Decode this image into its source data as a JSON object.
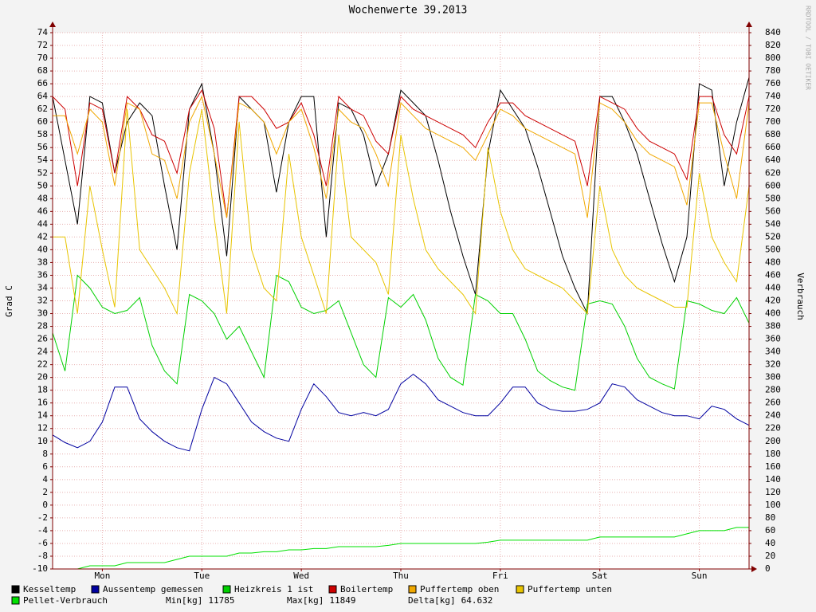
{
  "chart_data": {
    "type": "line",
    "title": "Wochenwerte 39.2013",
    "y_label": "Grad C",
    "y2_label": "Verbrauch",
    "watermark": "RRDTOOL / TOBI OETIKER",
    "x": [
      0,
      3,
      6,
      9,
      12,
      15,
      18,
      21,
      24,
      27,
      30,
      33,
      36,
      39,
      42,
      45,
      48,
      51,
      54,
      57,
      60,
      63,
      66,
      69,
      72,
      75,
      78,
      81,
      84,
      87,
      90,
      93,
      96,
      99,
      102,
      105,
      108,
      111,
      114,
      117,
      120,
      123,
      126,
      129,
      132,
      135,
      138,
      141,
      144,
      147,
      150,
      153,
      156,
      159,
      162,
      165,
      168
    ],
    "xlim": [
      0,
      168
    ],
    "xticks": [
      {
        "value": 12,
        "label": "Mon"
      },
      {
        "value": 36,
        "label": "Tue"
      },
      {
        "value": 60,
        "label": "Wed"
      },
      {
        "value": 84,
        "label": "Thu"
      },
      {
        "value": 108,
        "label": "Fri"
      },
      {
        "value": 132,
        "label": "Sat"
      },
      {
        "value": 156,
        "label": "Sun"
      }
    ],
    "ylim": [
      -10,
      74
    ],
    "yticks": [
      -10,
      -8,
      -6,
      -4,
      -2,
      0,
      2,
      4,
      6,
      8,
      10,
      12,
      14,
      16,
      18,
      20,
      22,
      24,
      26,
      28,
      30,
      32,
      34,
      36,
      38,
      40,
      42,
      44,
      46,
      48,
      50,
      52,
      54,
      56,
      58,
      60,
      62,
      64,
      66,
      68,
      70,
      72,
      74
    ],
    "y2lim": [
      0,
      840
    ],
    "y2ticks": [
      0,
      20,
      40,
      60,
      80,
      100,
      120,
      140,
      160,
      180,
      200,
      220,
      240,
      260,
      280,
      300,
      320,
      340,
      360,
      380,
      400,
      420,
      440,
      460,
      480,
      500,
      520,
      540,
      560,
      580,
      600,
      620,
      640,
      660,
      680,
      700,
      720,
      740,
      760,
      780,
      800,
      820,
      840
    ],
    "grid": true,
    "series": [
      {
        "name": "Kesseltemp",
        "color": "#000000",
        "values": [
          64,
          54,
          44,
          64,
          63,
          52,
          60,
          63,
          61,
          50,
          40,
          62,
          66,
          55,
          39,
          64,
          62,
          60,
          49,
          60,
          64,
          64,
          42,
          63,
          62,
          58,
          50,
          55,
          65,
          63,
          61,
          54,
          46,
          39,
          33,
          55,
          65,
          62,
          59,
          53,
          46,
          39,
          34,
          30,
          64,
          64,
          60,
          55,
          48,
          41,
          35,
          42,
          66,
          65,
          50,
          60,
          67
        ]
      },
      {
        "name": "Aussentemp gemessen",
        "color": "#0000a0",
        "values": [
          11,
          9.8,
          9,
          10,
          13,
          18.5,
          18.5,
          13.5,
          11.5,
          10,
          9,
          8.5,
          15,
          20,
          19,
          16,
          13,
          11.5,
          10.5,
          10,
          15,
          19,
          17,
          14.5,
          14,
          14.5,
          14,
          15,
          19,
          20.5,
          19,
          16.5,
          15.5,
          14.5,
          14,
          14,
          16,
          18.5,
          18.5,
          16,
          15,
          14.7,
          14.7,
          15,
          16,
          19,
          18.5,
          16.5,
          15.5,
          14.5,
          14,
          14,
          13.5,
          15.5,
          15,
          13.5,
          12.5
        ]
      },
      {
        "name": "Heizkreis 1 ist",
        "color": "#00d000",
        "values": [
          27,
          21,
          36,
          34,
          31,
          30,
          30.5,
          32.5,
          25,
          21,
          19,
          33,
          32,
          30,
          26,
          28,
          24,
          20,
          36,
          35,
          31,
          30,
          30.5,
          32,
          27,
          22,
          20,
          32.5,
          31,
          33,
          29,
          23,
          20,
          18.8,
          33,
          32,
          30,
          30,
          26,
          21,
          19.5,
          18.5,
          18,
          31.5,
          32,
          31.5,
          28,
          23,
          20,
          19,
          18.2,
          32,
          31.5,
          30.5,
          30,
          32.5,
          28.5
        ]
      },
      {
        "name": "Boilertemp",
        "color": "#cc0000",
        "values": [
          64,
          62,
          50,
          63,
          62,
          52,
          64,
          62,
          58,
          57,
          52,
          62,
          65,
          59,
          45,
          64,
          64,
          62,
          59,
          60,
          63,
          58,
          50,
          64,
          62,
          61,
          57,
          55,
          64,
          62,
          61,
          60,
          59,
          58,
          56,
          60,
          63,
          63,
          61,
          60,
          59,
          58,
          57,
          50,
          64,
          63,
          62,
          59,
          57,
          56,
          55,
          51,
          64,
          64,
          58,
          55,
          64
        ]
      },
      {
        "name": "Puffertemp oben",
        "color": "#f0a800",
        "values": [
          61,
          61,
          55,
          62,
          60,
          50,
          63,
          62,
          55,
          54,
          48,
          60,
          64,
          55,
          45,
          63,
          62,
          60,
          55,
          60,
          62,
          56,
          48,
          62,
          60,
          59,
          55,
          50,
          63,
          61,
          59,
          58,
          57,
          56,
          54,
          58,
          62,
          61,
          59,
          58,
          57,
          56,
          55,
          45,
          63,
          62,
          60,
          57,
          55,
          54,
          53,
          47,
          63,
          63,
          55,
          48,
          63
        ]
      },
      {
        "name": "Puffertemp unten",
        "color": "#e8c400",
        "values": [
          42,
          42,
          30,
          50,
          40,
          31,
          62,
          40,
          37,
          34,
          30,
          52,
          62,
          45,
          30,
          60,
          40,
          34,
          32,
          55,
          42,
          36,
          30,
          58,
          42,
          40,
          38,
          33,
          58,
          48,
          40,
          37,
          35,
          33,
          30,
          56,
          46,
          40,
          37,
          36,
          35,
          34,
          32,
          30,
          50,
          40,
          36,
          34,
          33,
          32,
          31,
          31,
          52,
          42,
          38,
          35,
          50
        ]
      },
      {
        "name": "Pellet-Verbrauch",
        "color": "#00e000",
        "axis": "y2",
        "values": [
          0,
          0,
          0,
          5,
          5,
          5,
          10,
          10,
          10,
          10,
          15,
          20,
          20,
          20,
          20,
          25,
          25,
          27,
          27,
          30,
          30,
          32,
          32,
          35,
          35,
          35,
          35,
          37,
          40,
          40,
          40,
          40,
          40,
          40,
          40,
          42,
          45,
          45,
          45,
          45,
          45,
          45,
          45,
          45,
          50,
          50,
          50,
          50,
          50,
          50,
          50,
          55,
          60,
          60,
          60,
          65,
          65
        ]
      }
    ],
    "stats": [
      {
        "label": "Min[kg]",
        "value": 11785
      },
      {
        "label": "Max[kg]",
        "value": 11849
      },
      {
        "label": "Delta[kg]",
        "value": 64.632
      }
    ]
  }
}
